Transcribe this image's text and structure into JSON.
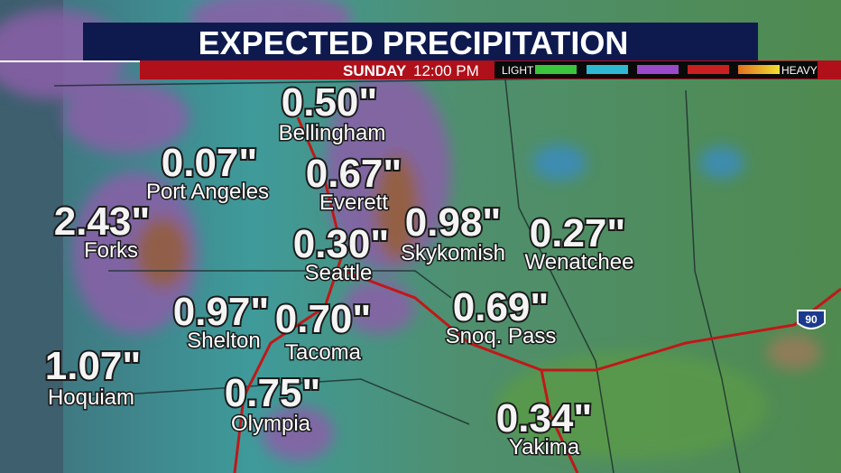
{
  "header": {
    "title": "EXPECTED PRECIPITATION",
    "day": "SUNDAY",
    "time": "12:00 PM"
  },
  "legend": {
    "low": "LIGHT",
    "high": "HEAVY"
  },
  "highway_shield": "90",
  "cities": [
    {
      "amount": "0.50\"",
      "name": "Bellingham"
    },
    {
      "amount": "0.07\"",
      "name": "Port Angeles"
    },
    {
      "amount": "0.67\"",
      "name": "Everett"
    },
    {
      "amount": "2.43\"",
      "name": "Forks"
    },
    {
      "amount": "0.98\"",
      "name": "Skykomish"
    },
    {
      "amount": "0.30\"",
      "name": "Seattle"
    },
    {
      "amount": "0.27\"",
      "name": "Wenatchee"
    },
    {
      "amount": "0.97\"",
      "name": "Shelton"
    },
    {
      "amount": "0.70\"",
      "name": "Tacoma"
    },
    {
      "amount": "0.69\"",
      "name": "Snoq. Pass"
    },
    {
      "amount": "1.07\"",
      "name": "Hoquiam"
    },
    {
      "amount": "0.75\"",
      "name": "Olympia"
    },
    {
      "amount": "0.34\"",
      "name": "Yakima"
    }
  ]
}
